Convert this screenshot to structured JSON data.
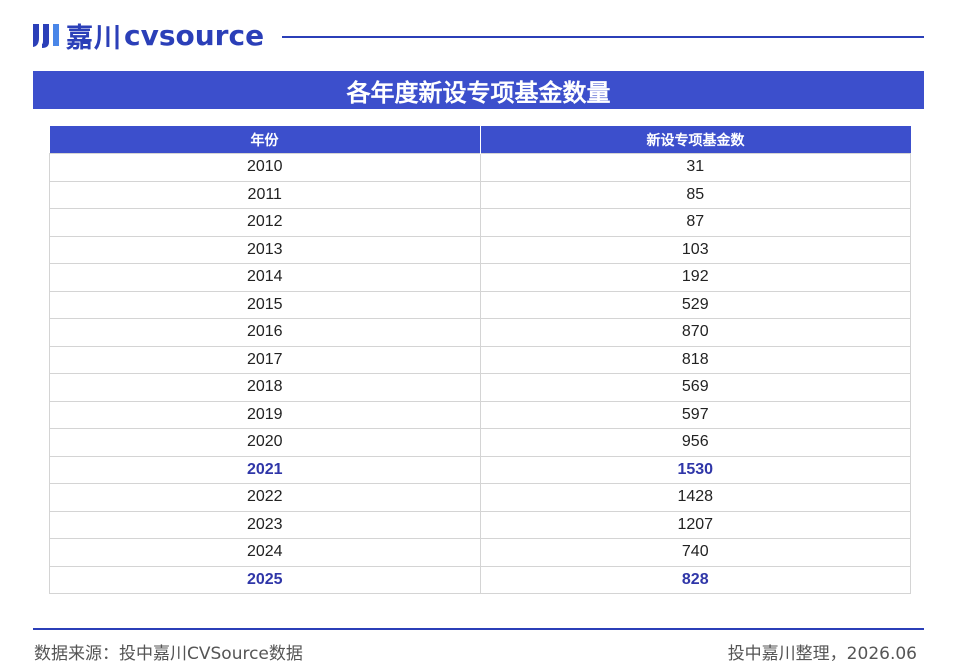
{
  "brand": {
    "logo_cn": "嘉川",
    "logo_en": "cvsource",
    "color": "#2b3fb8"
  },
  "title": "各年度新设专项基金数量",
  "table": {
    "headers": [
      "年份",
      "新设专项基金数"
    ],
    "rows": [
      {
        "year": "2010",
        "count": "31",
        "highlight": false
      },
      {
        "year": "2011",
        "count": "85",
        "highlight": false
      },
      {
        "year": "2012",
        "count": "87",
        "highlight": false
      },
      {
        "year": "2013",
        "count": "103",
        "highlight": false
      },
      {
        "year": "2014",
        "count": "192",
        "highlight": false
      },
      {
        "year": "2015",
        "count": "529",
        "highlight": false
      },
      {
        "year": "2016",
        "count": "870",
        "highlight": false
      },
      {
        "year": "2017",
        "count": "818",
        "highlight": false
      },
      {
        "year": "2018",
        "count": "569",
        "highlight": false
      },
      {
        "year": "2019",
        "count": "597",
        "highlight": false
      },
      {
        "year": "2020",
        "count": "956",
        "highlight": false
      },
      {
        "year": "2021",
        "count": "1530",
        "highlight": true
      },
      {
        "year": "2022",
        "count": "1428",
        "highlight": false
      },
      {
        "year": "2023",
        "count": "1207",
        "highlight": false
      },
      {
        "year": "2024",
        "count": "740",
        "highlight": false
      },
      {
        "year": "2025",
        "count": "828",
        "highlight": true
      }
    ],
    "header_color": "#3c4fcc",
    "highlight_color": "#2f36a8"
  },
  "footer": {
    "source": "数据来源：投中嘉川CVSource数据",
    "credit": "投中嘉川整理，2026.06"
  }
}
